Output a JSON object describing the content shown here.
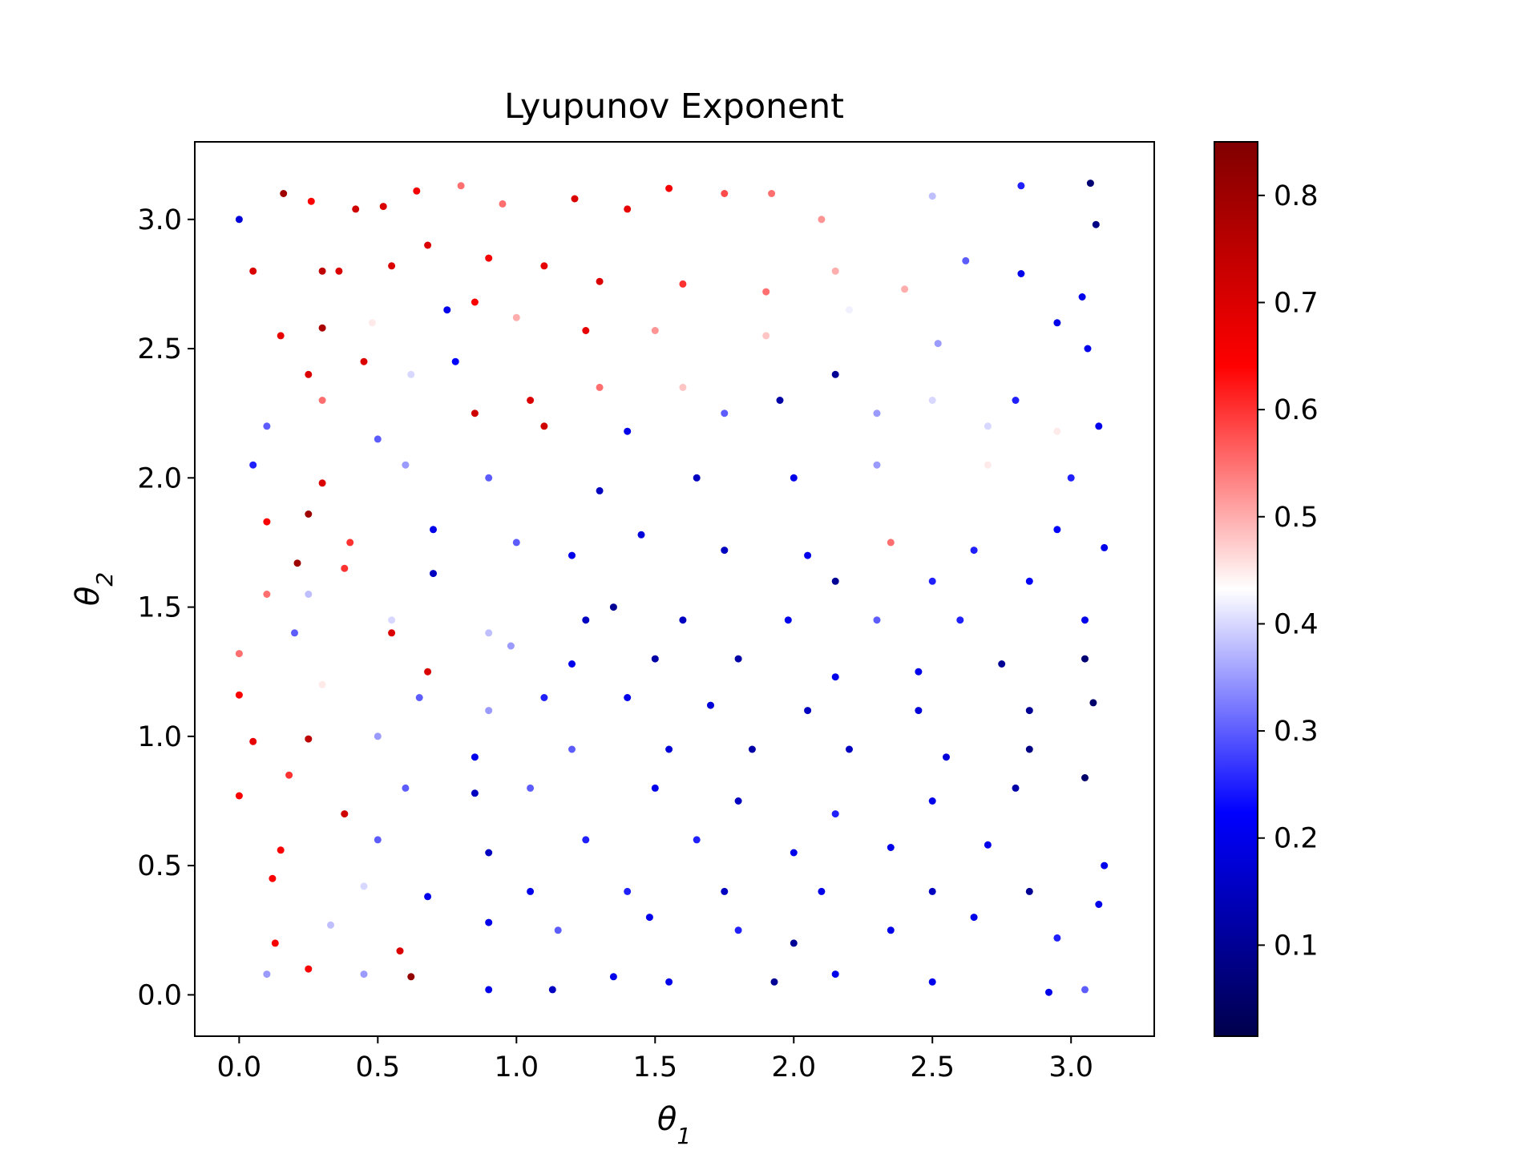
{
  "chart_data": {
    "type": "scatter",
    "title": "Lyupunov Exponent",
    "xlabel": "θ1",
    "ylabel": "θ2",
    "xlim": [
      -0.16,
      3.3
    ],
    "ylim": [
      -0.16,
      3.3
    ],
    "xticks": [
      0.0,
      0.5,
      1.0,
      1.5,
      2.0,
      2.5,
      3.0
    ],
    "yticks": [
      0.0,
      0.5,
      1.0,
      1.5,
      2.0,
      2.5,
      3.0
    ],
    "tick_labels": [
      "0.0",
      "0.5",
      "1.0",
      "1.5",
      "2.0",
      "2.5",
      "3.0"
    ],
    "colorbar": {
      "colormap": "seismic",
      "range": [
        0.015,
        0.85
      ],
      "ticks": [
        0.1,
        0.2,
        0.3,
        0.4,
        0.5,
        0.6,
        0.7,
        0.8
      ],
      "tick_labels": [
        "0.1",
        "0.2",
        "0.3",
        "0.4",
        "0.5",
        "0.6",
        "0.7",
        "0.8"
      ],
      "stops": [
        "#00004c",
        "#0000ff",
        "#ffffff",
        "#ff0000",
        "#800000"
      ]
    },
    "grid": false,
    "legend": "none",
    "points": [
      [
        0.0,
        3.0,
        0.18
      ],
      [
        0.16,
        3.1,
        0.8
      ],
      [
        0.26,
        3.07,
        0.65
      ],
      [
        0.42,
        3.04,
        0.72
      ],
      [
        0.52,
        3.05,
        0.7
      ],
      [
        0.64,
        3.11,
        0.66
      ],
      [
        0.8,
        3.13,
        0.55
      ],
      [
        0.95,
        3.06,
        0.55
      ],
      [
        1.21,
        3.08,
        0.7
      ],
      [
        1.4,
        3.04,
        0.68
      ],
      [
        1.55,
        3.12,
        0.66
      ],
      [
        1.75,
        3.1,
        0.58
      ],
      [
        1.92,
        3.1,
        0.55
      ],
      [
        2.1,
        3.0,
        0.52
      ],
      [
        2.5,
        3.09,
        0.38
      ],
      [
        2.82,
        3.13,
        0.25
      ],
      [
        3.07,
        3.14,
        0.06
      ],
      [
        3.09,
        2.98,
        0.08
      ],
      [
        0.05,
        2.8,
        0.7
      ],
      [
        0.3,
        2.8,
        0.75
      ],
      [
        0.36,
        2.8,
        0.7
      ],
      [
        0.55,
        2.82,
        0.7
      ],
      [
        0.68,
        2.9,
        0.7
      ],
      [
        0.9,
        2.85,
        0.66
      ],
      [
        1.1,
        2.82,
        0.68
      ],
      [
        1.3,
        2.76,
        0.7
      ],
      [
        1.6,
        2.75,
        0.6
      ],
      [
        1.9,
        2.72,
        0.55
      ],
      [
        2.15,
        2.8,
        0.5
      ],
      [
        2.4,
        2.73,
        0.5
      ],
      [
        2.62,
        2.84,
        0.3
      ],
      [
        2.82,
        2.79,
        0.2
      ],
      [
        3.04,
        2.7,
        0.2
      ],
      [
        0.15,
        2.55,
        0.68
      ],
      [
        0.3,
        2.58,
        0.78
      ],
      [
        0.48,
        2.6,
        0.45
      ],
      [
        0.75,
        2.65,
        0.2
      ],
      [
        0.85,
        2.68,
        0.65
      ],
      [
        1.0,
        2.62,
        0.5
      ],
      [
        1.25,
        2.57,
        0.68
      ],
      [
        1.5,
        2.57,
        0.52
      ],
      [
        1.9,
        2.55,
        0.48
      ],
      [
        2.2,
        2.65,
        0.42
      ],
      [
        2.52,
        2.52,
        0.35
      ],
      [
        2.95,
        2.6,
        0.2
      ],
      [
        3.06,
        2.5,
        0.2
      ],
      [
        0.25,
        2.4,
        0.7
      ],
      [
        0.45,
        2.45,
        0.7
      ],
      [
        0.62,
        2.4,
        0.4
      ],
      [
        0.78,
        2.45,
        0.22
      ],
      [
        1.05,
        2.3,
        0.7
      ],
      [
        1.3,
        2.35,
        0.55
      ],
      [
        1.6,
        2.35,
        0.48
      ],
      [
        2.15,
        2.4,
        0.1
      ],
      [
        2.5,
        2.3,
        0.4
      ],
      [
        2.8,
        2.3,
        0.25
      ],
      [
        3.1,
        2.2,
        0.2
      ],
      [
        0.1,
        2.2,
        0.3
      ],
      [
        0.3,
        2.3,
        0.55
      ],
      [
        0.5,
        2.15,
        0.3
      ],
      [
        0.85,
        2.25,
        0.72
      ],
      [
        1.1,
        2.2,
        0.72
      ],
      [
        1.4,
        2.18,
        0.2
      ],
      [
        1.75,
        2.25,
        0.3
      ],
      [
        1.95,
        2.3,
        0.12
      ],
      [
        2.3,
        2.25,
        0.35
      ],
      [
        2.7,
        2.2,
        0.4
      ],
      [
        2.95,
        2.18,
        0.45
      ],
      [
        0.05,
        2.05,
        0.25
      ],
      [
        0.3,
        1.98,
        0.7
      ],
      [
        0.6,
        2.05,
        0.35
      ],
      [
        0.9,
        2.0,
        0.3
      ],
      [
        1.3,
        1.95,
        0.15
      ],
      [
        1.65,
        2.0,
        0.15
      ],
      [
        2.0,
        2.0,
        0.2
      ],
      [
        2.3,
        2.05,
        0.35
      ],
      [
        2.7,
        2.05,
        0.45
      ],
      [
        3.0,
        2.0,
        0.25
      ],
      [
        0.1,
        1.83,
        0.65
      ],
      [
        0.25,
        1.86,
        0.8
      ],
      [
        0.4,
        1.75,
        0.6
      ],
      [
        0.7,
        1.8,
        0.2
      ],
      [
        1.0,
        1.75,
        0.3
      ],
      [
        1.2,
        1.7,
        0.2
      ],
      [
        1.45,
        1.78,
        0.18
      ],
      [
        1.75,
        1.72,
        0.15
      ],
      [
        2.05,
        1.7,
        0.2
      ],
      [
        2.35,
        1.75,
        0.55
      ],
      [
        2.65,
        1.72,
        0.25
      ],
      [
        2.95,
        1.8,
        0.22
      ],
      [
        3.12,
        1.73,
        0.2
      ],
      [
        0.21,
        1.67,
        0.8
      ],
      [
        0.38,
        1.65,
        0.6
      ],
      [
        0.7,
        1.63,
        0.15
      ],
      [
        1.35,
        1.5,
        0.1
      ],
      [
        2.15,
        1.6,
        0.1
      ],
      [
        2.5,
        1.6,
        0.25
      ],
      [
        2.85,
        1.6,
        0.22
      ],
      [
        0.1,
        1.55,
        0.55
      ],
      [
        0.25,
        1.55,
        0.38
      ],
      [
        0.55,
        1.45,
        0.4
      ],
      [
        0.9,
        1.4,
        0.38
      ],
      [
        1.25,
        1.45,
        0.15
      ],
      [
        1.6,
        1.45,
        0.15
      ],
      [
        1.98,
        1.45,
        0.2
      ],
      [
        2.3,
        1.45,
        0.3
      ],
      [
        2.6,
        1.45,
        0.25
      ],
      [
        3.05,
        1.45,
        0.2
      ],
      [
        0.0,
        1.32,
        0.55
      ],
      [
        0.2,
        1.4,
        0.3
      ],
      [
        0.55,
        1.4,
        0.7
      ],
      [
        0.68,
        1.25,
        0.7
      ],
      [
        0.98,
        1.35,
        0.35
      ],
      [
        1.2,
        1.28,
        0.2
      ],
      [
        1.5,
        1.3,
        0.12
      ],
      [
        1.8,
        1.3,
        0.12
      ],
      [
        2.15,
        1.23,
        0.2
      ],
      [
        2.45,
        1.25,
        0.2
      ],
      [
        2.75,
        1.28,
        0.1
      ],
      [
        3.05,
        1.3,
        0.06
      ],
      [
        0.0,
        1.16,
        0.65
      ],
      [
        0.3,
        1.2,
        0.45
      ],
      [
        0.65,
        1.15,
        0.3
      ],
      [
        0.9,
        1.1,
        0.35
      ],
      [
        1.1,
        1.15,
        0.25
      ],
      [
        1.4,
        1.15,
        0.2
      ],
      [
        1.7,
        1.12,
        0.18
      ],
      [
        2.05,
        1.1,
        0.15
      ],
      [
        2.45,
        1.1,
        0.18
      ],
      [
        2.85,
        1.1,
        0.1
      ],
      [
        3.08,
        1.13,
        0.05
      ],
      [
        0.05,
        0.98,
        0.68
      ],
      [
        0.25,
        0.99,
        0.75
      ],
      [
        0.5,
        1.0,
        0.35
      ],
      [
        0.85,
        0.92,
        0.2
      ],
      [
        1.2,
        0.95,
        0.3
      ],
      [
        1.55,
        0.95,
        0.18
      ],
      [
        1.85,
        0.95,
        0.12
      ],
      [
        2.2,
        0.95,
        0.15
      ],
      [
        2.55,
        0.92,
        0.18
      ],
      [
        2.85,
        0.95,
        0.08
      ],
      [
        0.0,
        0.77,
        0.65
      ],
      [
        0.18,
        0.85,
        0.6
      ],
      [
        0.38,
        0.7,
        0.72
      ],
      [
        0.6,
        0.8,
        0.3
      ],
      [
        0.85,
        0.78,
        0.15
      ],
      [
        1.05,
        0.8,
        0.3
      ],
      [
        1.5,
        0.8,
        0.2
      ],
      [
        1.8,
        0.75,
        0.15
      ],
      [
        2.15,
        0.7,
        0.25
      ],
      [
        2.5,
        0.75,
        0.2
      ],
      [
        2.8,
        0.8,
        0.12
      ],
      [
        3.05,
        0.84,
        0.05
      ],
      [
        0.15,
        0.56,
        0.65
      ],
      [
        0.5,
        0.6,
        0.3
      ],
      [
        0.9,
        0.55,
        0.15
      ],
      [
        1.25,
        0.6,
        0.25
      ],
      [
        1.65,
        0.6,
        0.25
      ],
      [
        2.0,
        0.55,
        0.2
      ],
      [
        2.35,
        0.57,
        0.2
      ],
      [
        2.7,
        0.58,
        0.2
      ],
      [
        3.12,
        0.5,
        0.2
      ],
      [
        0.12,
        0.45,
        0.65
      ],
      [
        0.45,
        0.42,
        0.4
      ],
      [
        0.68,
        0.38,
        0.2
      ],
      [
        1.05,
        0.4,
        0.2
      ],
      [
        1.4,
        0.4,
        0.25
      ],
      [
        1.75,
        0.4,
        0.15
      ],
      [
        2.1,
        0.4,
        0.2
      ],
      [
        2.5,
        0.4,
        0.15
      ],
      [
        2.85,
        0.4,
        0.1
      ],
      [
        3.1,
        0.35,
        0.2
      ],
      [
        0.13,
        0.2,
        0.65
      ],
      [
        0.33,
        0.27,
        0.38
      ],
      [
        0.58,
        0.17,
        0.7
      ],
      [
        0.9,
        0.28,
        0.2
      ],
      [
        1.15,
        0.25,
        0.3
      ],
      [
        1.48,
        0.3,
        0.2
      ],
      [
        1.8,
        0.25,
        0.25
      ],
      [
        2.0,
        0.2,
        0.1
      ],
      [
        2.35,
        0.25,
        0.2
      ],
      [
        2.65,
        0.3,
        0.2
      ],
      [
        2.95,
        0.22,
        0.25
      ],
      [
        0.1,
        0.08,
        0.35
      ],
      [
        0.25,
        0.1,
        0.65
      ],
      [
        0.45,
        0.08,
        0.35
      ],
      [
        0.62,
        0.07,
        0.82
      ],
      [
        0.9,
        0.02,
        0.2
      ],
      [
        1.13,
        0.02,
        0.15
      ],
      [
        1.35,
        0.07,
        0.2
      ],
      [
        1.55,
        0.05,
        0.2
      ],
      [
        1.93,
        0.05,
        0.1
      ],
      [
        2.15,
        0.08,
        0.2
      ],
      [
        2.5,
        0.05,
        0.2
      ],
      [
        2.92,
        0.01,
        0.2
      ],
      [
        3.05,
        0.02,
        0.3
      ]
    ]
  }
}
